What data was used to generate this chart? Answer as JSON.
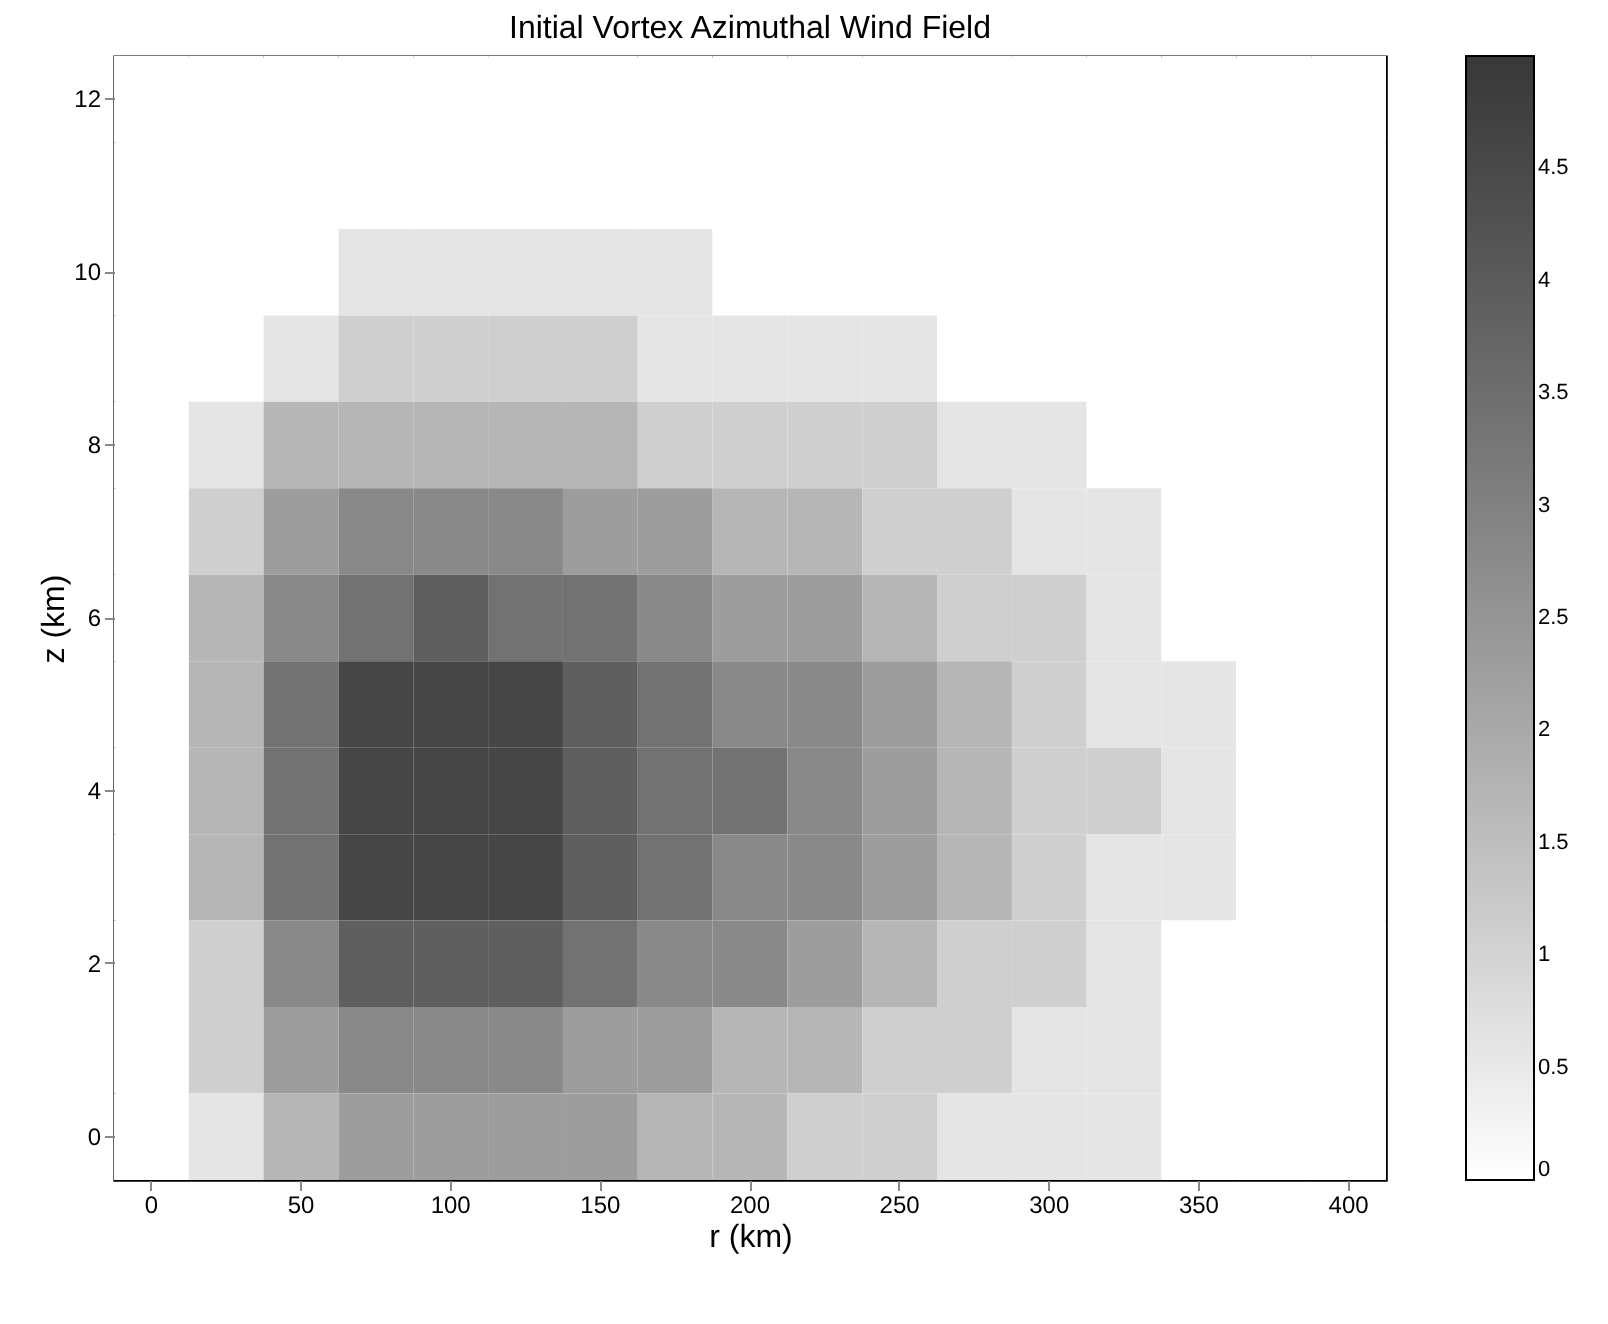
{
  "chart_data": {
    "type": "heatmap",
    "title": "Initial Vortex Azimuthal Wind Field",
    "xlabel": "r (km)",
    "ylabel": "z (km)",
    "categories": [
      "0",
      null,
      "50",
      null,
      "100",
      null,
      "150",
      null,
      "200",
      null,
      "250",
      null,
      "300",
      null,
      "350",
      null,
      "400"
    ],
    "y_categories": [
      "12",
      null,
      "10",
      null,
      "8",
      null,
      "6",
      null,
      "4",
      null,
      "2",
      null,
      "0"
    ],
    "cells": [
      [
        0,
        0,
        0,
        0,
        0,
        0,
        0,
        0,
        0,
        0,
        0,
        0,
        0,
        0,
        0,
        0,
        0
      ],
      [
        0,
        0,
        0,
        0,
        0,
        0,
        0,
        0,
        0,
        0,
        0,
        0,
        0,
        0,
        0,
        0,
        0
      ],
      [
        0,
        0,
        0,
        0.6,
        0.6,
        0.6,
        0.6,
        0.6,
        0,
        0,
        0,
        0,
        0,
        0,
        0,
        0,
        0
      ],
      [
        0,
        0,
        0.6,
        1.1,
        1.1,
        1.1,
        1.1,
        0.6,
        0.6,
        0.6,
        0.6,
        0,
        0,
        0,
        0,
        0,
        0
      ],
      [
        0,
        0.6,
        1.7,
        1.7,
        1.7,
        1.7,
        1.7,
        1.1,
        1.1,
        1.1,
        1.1,
        0.6,
        0.6,
        0,
        0,
        0,
        0
      ],
      [
        0,
        1.1,
        2.3,
        2.8,
        2.8,
        2.8,
        2.3,
        2.3,
        1.7,
        1.7,
        1.1,
        1.1,
        0.6,
        0.6,
        0,
        0,
        0
      ],
      [
        0,
        1.7,
        2.8,
        3.4,
        3.9,
        3.4,
        3.4,
        2.8,
        2.3,
        2.3,
        1.7,
        1.1,
        1.1,
        0.6,
        0,
        0,
        0
      ],
      [
        0,
        1.7,
        3.4,
        4.6,
        4.6,
        4.6,
        3.9,
        3.4,
        2.8,
        2.8,
        2.3,
        1.7,
        1.1,
        0.6,
        0.6,
        0,
        0
      ],
      [
        0,
        1.7,
        3.4,
        4.6,
        4.6,
        4.6,
        3.9,
        3.4,
        3.4,
        2.8,
        2.3,
        1.7,
        1.1,
        1.1,
        0.6,
        0,
        0
      ],
      [
        0,
        1.7,
        3.4,
        4.6,
        4.6,
        4.6,
        3.9,
        3.4,
        2.8,
        2.8,
        2.3,
        1.7,
        1.1,
        0.6,
        0.6,
        0,
        0
      ],
      [
        0,
        1.1,
        2.8,
        3.9,
        3.9,
        3.9,
        3.4,
        2.8,
        2.8,
        2.3,
        1.7,
        1.1,
        1.1,
        0.6,
        0,
        0,
        0
      ],
      [
        0,
        1.1,
        2.3,
        2.8,
        2.8,
        2.8,
        2.3,
        2.3,
        1.7,
        1.7,
        1.1,
        1.1,
        0.6,
        0.6,
        0,
        0,
        0
      ],
      [
        0,
        0.6,
        1.7,
        2.3,
        2.3,
        2.3,
        2.3,
        1.7,
        1.7,
        1.1,
        1.1,
        0.6,
        0.6,
        0.6,
        0,
        0,
        0
      ]
    ],
    "clim": [
      0,
      5
    ],
    "cticks": [
      0,
      0.5,
      1,
      1.5,
      2,
      2.5,
      3,
      3.5,
      4,
      4.5
    ],
    "colors": [
      "#ffffff",
      "#383838"
    ]
  }
}
